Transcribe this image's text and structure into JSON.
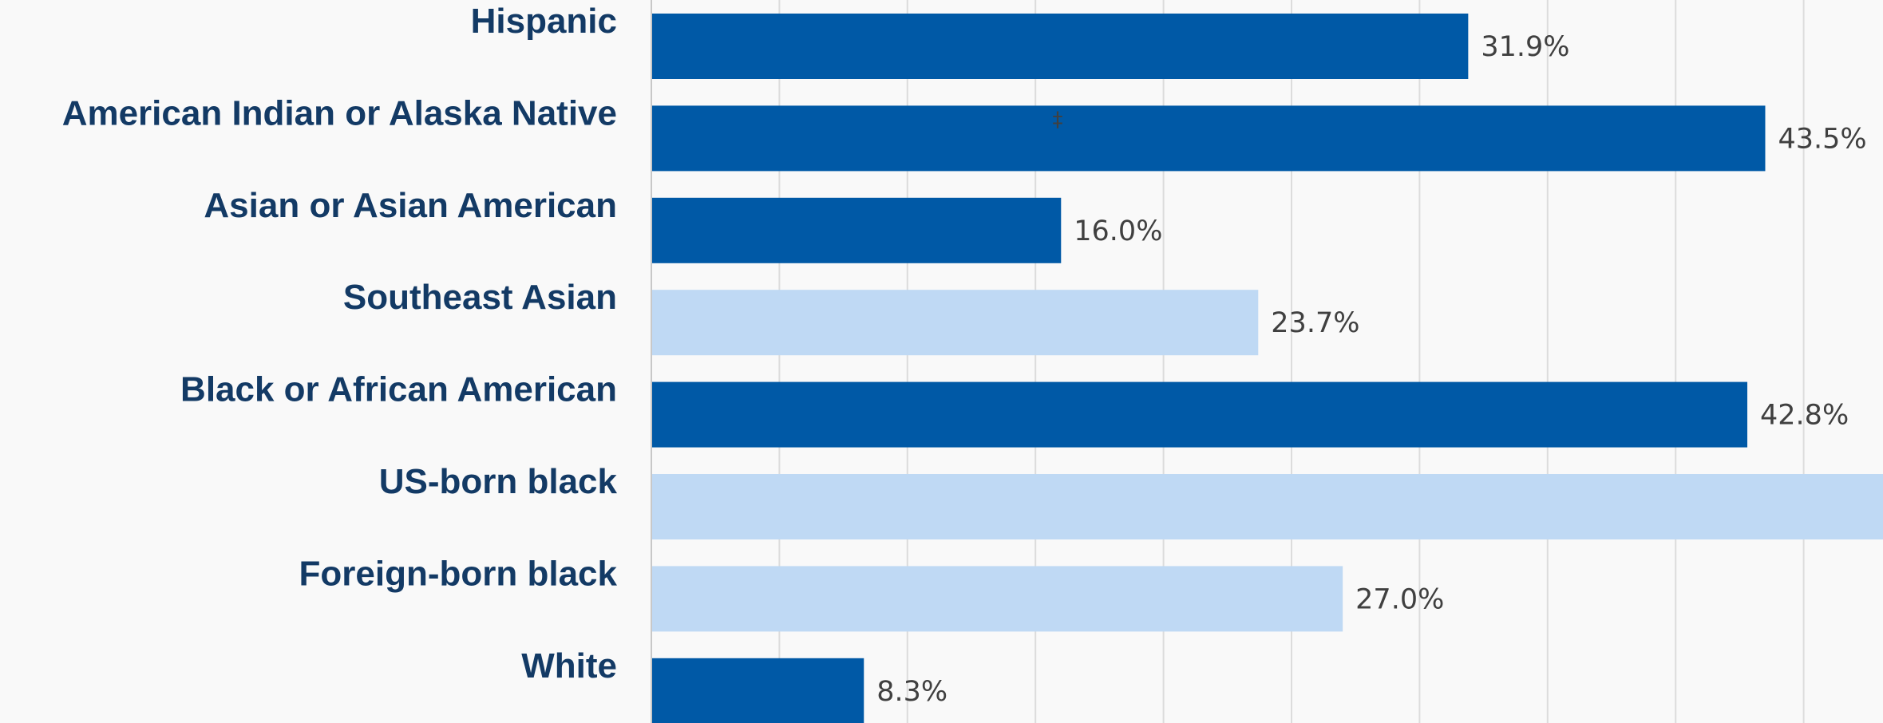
{
  "chart_data": {
    "type": "bar",
    "orientation": "horizontal",
    "title": "",
    "xlabel": "",
    "ylabel": "",
    "xlim": [
      0,
      48
    ],
    "grid": true,
    "categories": [
      "Hispanic",
      "American Indian or Alaska Native",
      "Asian or Asian American",
      "Southeast Asian",
      "Black or African American",
      "US-born black",
      "Foreign-born black",
      "White"
    ],
    "values": [
      31.9,
      43.5,
      16.0,
      23.7,
      42.8,
      50.0,
      27.0,
      8.3
    ],
    "value_labels": [
      "31.9%",
      "43.5%",
      "16.0%",
      "23.7%",
      "42.8%",
      "",
      "27.0%",
      "8.3%"
    ],
    "bar_colors": [
      "#0059a6",
      "#0059a6",
      "#0059a6",
      "#bfd9f4",
      "#0059a6",
      "#bfd9f4",
      "#bfd9f4",
      "#0059a6"
    ],
    "annotations": [
      {
        "category": "American Indian or Alaska Native",
        "text": "‡"
      }
    ]
  }
}
